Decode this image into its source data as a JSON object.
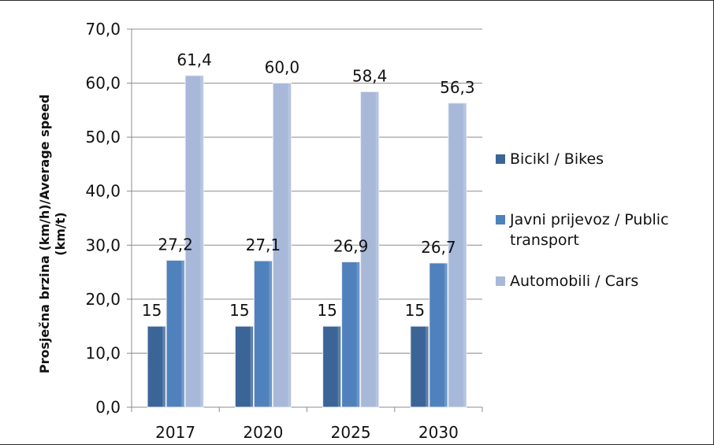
{
  "chart_data": {
    "type": "bar",
    "categories": [
      "2017",
      "2020",
      "2025",
      "2030"
    ],
    "series": [
      {
        "name": "Bicikl / Bikes",
        "values": [
          15,
          15,
          15,
          15
        ],
        "labels": [
          "15",
          "15",
          "15",
          "15"
        ],
        "color": "#3b6597"
      },
      {
        "name": "Javni prijevoz / Public transport",
        "values": [
          27.2,
          27.1,
          26.9,
          26.7
        ],
        "labels": [
          "27,2",
          "27,1",
          "26,9",
          "26,7"
        ],
        "color": "#4f81bd"
      },
      {
        "name": "Automobili / Cars",
        "values": [
          61.4,
          60.0,
          58.4,
          56.3
        ],
        "labels": [
          "61,4",
          "60,0",
          "58,4",
          "56,3"
        ],
        "color": "#a7b8d9"
      }
    ],
    "ylabel": [
      "Prosječna brzina (km/h)/Average speed",
      "(km/t)"
    ],
    "ylim": [
      0,
      70
    ],
    "yticks": [
      "0,0",
      "10,0",
      "20,0",
      "30,0",
      "40,0",
      "50,0",
      "60,0",
      "70,0"
    ],
    "legend": [
      [
        "Bicikl / Bikes"
      ],
      [
        "Javni prijevoz / Public",
        "transport"
      ],
      [
        "Automobili / Cars"
      ]
    ],
    "legend_position": "right",
    "grid": true
  }
}
